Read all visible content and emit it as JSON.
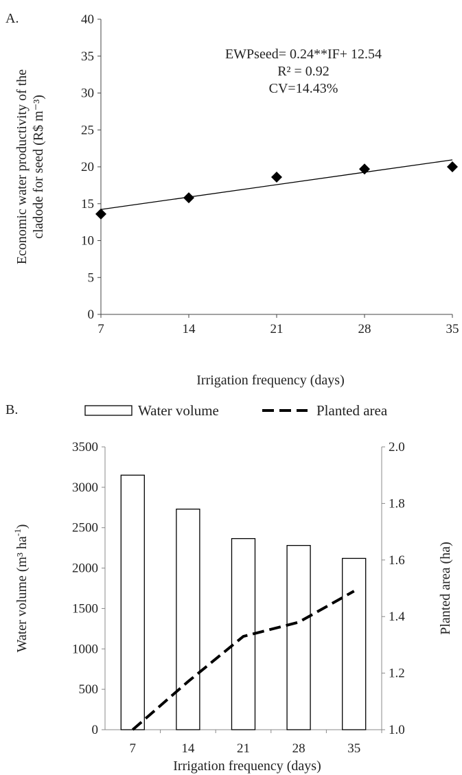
{
  "chart_data": [
    {
      "panel_label": "A.",
      "type": "scatter",
      "x": [
        7,
        14,
        21,
        28,
        35
      ],
      "y": [
        13.6,
        15.8,
        18.6,
        19.7,
        20.0
      ],
      "trendline": {
        "slope": 0.24,
        "intercept": 12.54
      },
      "equation": "EWPseed= 0.24**IF+ 12.54",
      "r2_label": "R² = 0.92",
      "cv_label": "CV=14.43%",
      "ylabel_line1": "Economic water  productivity  of  the",
      "ylabel_line2": "cladode for seed  (R$ m⁻³)",
      "xlabel": "Irrigation frequency (days)",
      "xlim": [
        7,
        35
      ],
      "ylim": [
        0,
        40
      ],
      "xticks": [
        "7",
        "14",
        "21",
        "28",
        "35"
      ],
      "yticks": [
        "0",
        "5",
        "10",
        "15",
        "20",
        "25",
        "30",
        "35",
        "40"
      ],
      "grid": false,
      "marker": "diamond",
      "color": "#000000"
    },
    {
      "panel_label": "B.",
      "type": "bar",
      "categories": [
        "7",
        "14",
        "21",
        "28",
        "35"
      ],
      "series": [
        {
          "name": "Water volume",
          "type": "bar",
          "axis": "left",
          "values": [
            3150,
            2730,
            2365,
            2280,
            2120
          ]
        },
        {
          "name": "Planted area",
          "type": "line",
          "style": "dashed",
          "axis": "right",
          "values": [
            1.0,
            1.17,
            1.33,
            1.38,
            1.49
          ]
        }
      ],
      "ylabel_left_prefix": "Water volume (m³ ha",
      "ylabel_left_sup": "-1",
      "ylabel_left_suffix": ")",
      "ylabel_right": "Planted area (ha)",
      "xlabel": "Irrigation frequency (days)",
      "ylim_left": [
        0,
        3500
      ],
      "ylim_right": [
        1.0,
        2.0
      ],
      "yticks_left": [
        "0",
        "500",
        "1000",
        "1500",
        "2000",
        "2500",
        "3000",
        "3500"
      ],
      "yticks_right": [
        "1.0",
        "1.2",
        "1.4",
        "1.6",
        "1.8",
        "2.0"
      ],
      "legend_position": "top",
      "grid": false
    }
  ]
}
